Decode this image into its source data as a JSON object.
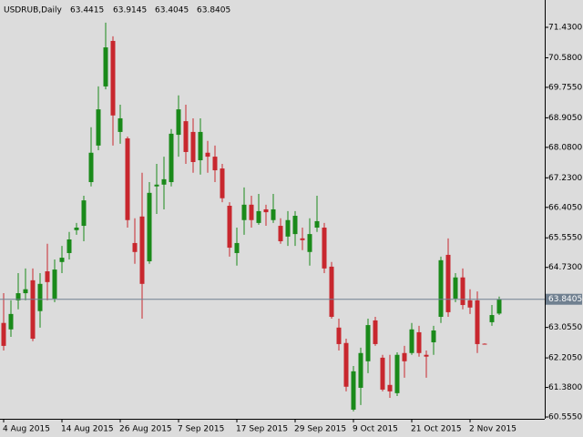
{
  "chart_data": {
    "type": "candlestick",
    "symbol": "USDRUB,Daily",
    "x": [
      "4 Aug 2015",
      null,
      null,
      null,
      null,
      null,
      null,
      null,
      "14 Aug 2015",
      null,
      null,
      null,
      null,
      null,
      null,
      null,
      "26 Aug 2015",
      null,
      null,
      null,
      null,
      null,
      null,
      null,
      "7 Sep 2015",
      null,
      null,
      null,
      null,
      null,
      null,
      null,
      "17 Sep 2015",
      null,
      null,
      null,
      null,
      null,
      null,
      null,
      "29 Sep 2015",
      null,
      null,
      null,
      null,
      null,
      null,
      null,
      "9 Oct 2015",
      null,
      null,
      null,
      null,
      null,
      null,
      null,
      "21 Oct 2015",
      null,
      null,
      null,
      null,
      null,
      null,
      null,
      "2 Nov 2015",
      null,
      null,
      null,
      null
    ],
    "open": [
      63.18,
      63.0,
      63.81,
      64.01,
      64.37,
      63.51,
      64.62,
      63.86,
      64.88,
      65.13,
      65.77,
      65.89,
      67.11,
      68.13,
      69.78,
      71.05,
      68.51,
      68.33,
      65.41,
      66.15,
      64.9,
      66.99,
      67.04,
      67.11,
      68.43,
      68.81,
      68.51,
      67.72,
      67.93,
      67.82,
      67.49,
      66.45,
      65.13,
      66.05,
      66.48,
      65.97,
      66.35,
      66.05,
      65.89,
      65.59,
      65.66,
      65.54,
      65.16,
      65.84,
      65.84,
      64.75,
      63.05,
      62.62,
      60.76,
      61.37,
      62.11,
      63.25,
      62.21,
      61.45,
      61.22,
      62.34,
      62.34,
      62.92,
      62.29,
      62.64,
      63.35,
      65.08,
      63.86,
      64.45,
      63.81,
      63.81,
      62.6,
      63.2,
      63.4415
    ],
    "high": [
      64.01,
      63.81,
      64.57,
      64.7,
      64.7,
      64.57,
      65.39,
      64.95,
      65.33,
      65.72,
      65.97,
      66.73,
      68.64,
      69.78,
      71.56,
      71.18,
      69.27,
      68.38,
      66.1,
      67.37,
      67.11,
      67.62,
      67.82,
      68.59,
      69.53,
      69.27,
      68.89,
      68.89,
      68.26,
      68.13,
      67.62,
      66.55,
      65.84,
      66.96,
      66.73,
      66.78,
      66.48,
      66.78,
      66.1,
      66.3,
      66.3,
      65.84,
      66.1,
      66.73,
      65.97,
      64.88,
      63.3,
      62.74,
      61.98,
      62.49,
      63.3,
      63.35,
      62.29,
      62.29,
      62.36,
      62.54,
      63.18,
      63.1,
      62.41,
      63.1,
      65.03,
      65.54,
      64.57,
      64.7,
      64.12,
      64.06,
      62.61,
      63.68,
      63.9145
    ],
    "low": [
      62.41,
      62.79,
      63.56,
      63.81,
      62.67,
      63.05,
      63.81,
      63.76,
      64.57,
      64.95,
      65.64,
      65.46,
      66.99,
      68.0,
      69.7,
      68.13,
      68.18,
      65.84,
      64.83,
      63.3,
      64.83,
      66.22,
      66.35,
      66.99,
      67.82,
      67.62,
      67.37,
      67.32,
      67.37,
      67.11,
      66.55,
      65.03,
      64.78,
      65.64,
      65.84,
      65.92,
      65.89,
      65.97,
      65.39,
      65.33,
      65.33,
      65.21,
      64.78,
      65.72,
      64.57,
      63.3,
      62.41,
      61.27,
      60.71,
      60.89,
      61.78,
      62.54,
      61.27,
      61.09,
      61.14,
      61.65,
      62.29,
      62.24,
      61.65,
      62.29,
      63.18,
      63.35,
      63.76,
      63.56,
      63.43,
      62.34,
      62.58,
      63.1,
      63.4045
    ],
    "close": [
      62.54,
      63.43,
      64.01,
      64.12,
      62.74,
      64.27,
      64.32,
      64.67,
      65.0,
      65.51,
      65.84,
      66.6,
      67.93,
      69.14,
      70.87,
      68.97,
      68.89,
      66.05,
      65.16,
      64.27,
      66.81,
      67.04,
      67.19,
      68.46,
      69.14,
      67.95,
      67.67,
      68.51,
      67.82,
      67.44,
      66.66,
      65.28,
      65.41,
      66.48,
      66.05,
      66.3,
      66.27,
      66.35,
      65.46,
      66.05,
      66.17,
      65.49,
      65.66,
      66.02,
      64.7,
      63.35,
      62.59,
      61.4,
      61.83,
      62.34,
      63.12,
      62.59,
      61.32,
      61.27,
      62.29,
      62.11,
      63.0,
      62.34,
      62.24,
      62.97,
      64.93,
      63.48,
      64.45,
      63.68,
      63.61,
      62.59,
      62.59,
      63.4,
      63.8405
    ],
    "up_color": "#1a8a1a",
    "down_color": "#c8272e",
    "price_line_color": "#708090",
    "ylim": [
      60.505,
      72.192
    ],
    "yticks": [
      {
        "value": 71.43,
        "label": "71.4300"
      },
      {
        "value": 70.58,
        "label": "70.5800"
      },
      {
        "value": 69.755,
        "label": "69.7550"
      },
      {
        "value": 68.905,
        "label": "68.9050"
      },
      {
        "value": 68.08,
        "label": "68.0800"
      },
      {
        "value": 67.23,
        "label": "67.2300"
      },
      {
        "value": 66.405,
        "label": "66.4050"
      },
      {
        "value": 65.555,
        "label": "65.5550"
      },
      {
        "value": 64.73,
        "label": "64.7300"
      },
      {
        "value": 63.055,
        "label": "63.0550"
      },
      {
        "value": 62.205,
        "label": "62.2050"
      },
      {
        "value": 61.38,
        "label": "61.3800"
      },
      {
        "value": 60.555,
        "label": "60.5550"
      }
    ]
  }
}
